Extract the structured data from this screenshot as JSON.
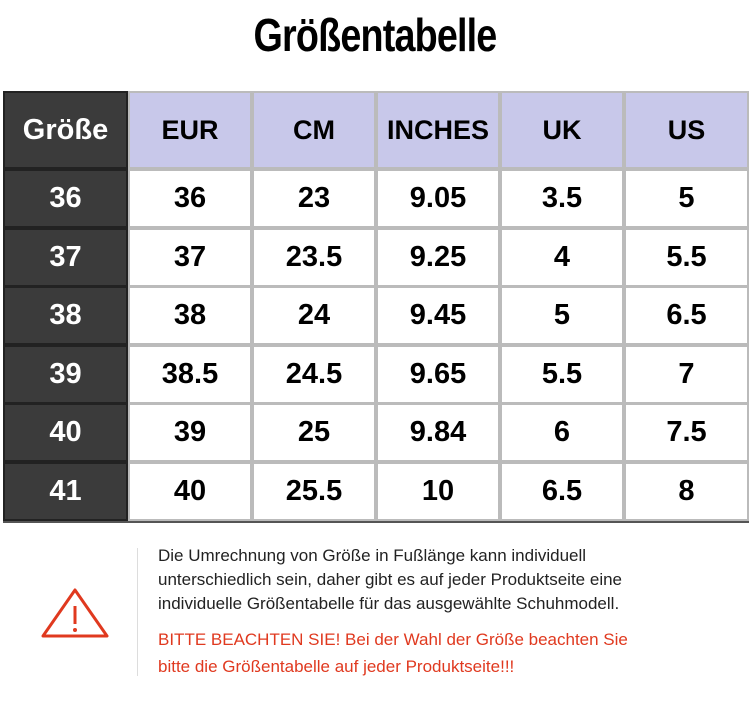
{
  "title": "Größentabelle",
  "table": {
    "header": [
      "Größe",
      "EUR",
      "CM",
      "INCHES",
      "UK",
      "US"
    ],
    "rows": [
      [
        "36",
        "36",
        "23",
        "9.05",
        "3.5",
        "5"
      ],
      [
        "37",
        "37",
        "23.5",
        "9.25",
        "4",
        "5.5"
      ],
      [
        "38",
        "38",
        "24",
        "9.45",
        "5",
        "6.5"
      ],
      [
        "39",
        "38.5",
        "24.5",
        "9.65",
        "5.5",
        "7"
      ],
      [
        "40",
        "39",
        "25",
        "9.84",
        "6",
        "7.5"
      ],
      [
        "41",
        "40",
        "25.5",
        "10",
        "6.5",
        "8"
      ]
    ]
  },
  "note": {
    "lines": [
      "Die Umrechnung von Größe in Fußlänge kann individuell",
      "unterschiedlich sein, daher gibt es auf jeder Produktseite eine",
      "individuelle Größentabelle für das ausgewählte Schuhmodell."
    ],
    "warning": [
      "BITTE BEACHTEN SIE! Bei der Wahl der Größe beachten Sie",
      "bitte die Größentabelle auf jeder Produktseite!!!"
    ]
  }
}
